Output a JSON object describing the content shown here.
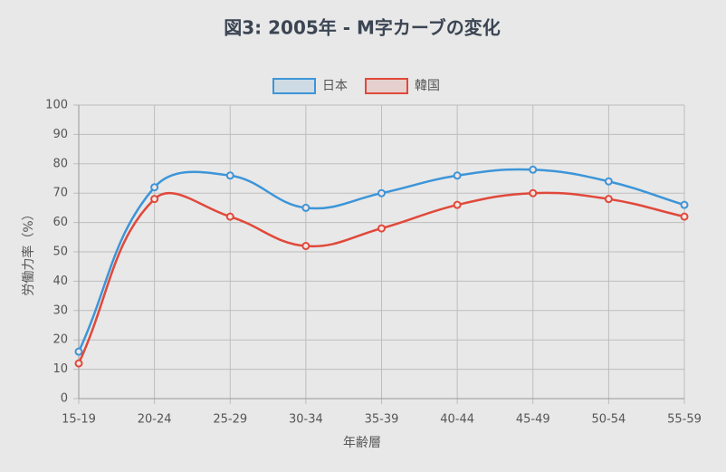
{
  "chart_data": {
    "type": "line",
    "title": "図3: 2005年 - M字カーブの変化",
    "x_label": "年齢層",
    "y_label": "労働力率（%）",
    "categories": [
      "15-19",
      "20-24",
      "25-29",
      "30-34",
      "35-39",
      "40-44",
      "45-49",
      "50-54",
      "55-59"
    ],
    "series": [
      {
        "name": "日本",
        "color": "#3d95d8",
        "values": [
          16,
          72,
          76,
          65,
          70,
          76,
          78,
          74,
          66
        ]
      },
      {
        "name": "韓国",
        "color": "#e0493b",
        "values": [
          12,
          68,
          62,
          52,
          58,
          66,
          70,
          68,
          62
        ]
      }
    ],
    "ylim": [
      0,
      100
    ],
    "yticks": [
      0,
      10,
      20,
      30,
      40,
      50,
      60,
      70,
      80,
      90,
      100
    ],
    "grid": true,
    "legend": "top"
  }
}
